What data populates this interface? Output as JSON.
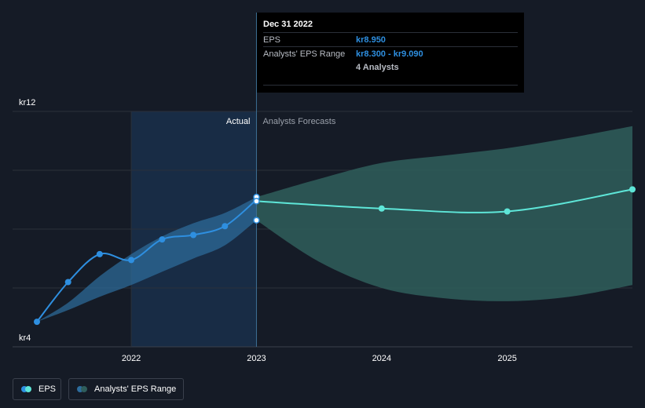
{
  "tooltip": {
    "date": "Dec 31 2022",
    "eps_label": "EPS",
    "eps_value": "kr8.950",
    "range_label": "Analysts' EPS Range",
    "range_value": "kr8.300 - kr9.090",
    "analysts": "4 Analysts"
  },
  "legend": {
    "eps": "EPS",
    "range": "Analysts' EPS Range"
  },
  "colors": {
    "background": "#151b26",
    "eps_line": "#2e8fe0",
    "forecast_line": "#5ee6d8",
    "actual_band": "#2d6d9e",
    "forecast_band": "#2f5e5c"
  },
  "chart_data": {
    "type": "line",
    "y_unit_prefix": "kr",
    "y_tick_labels": [
      "kr12",
      "kr4"
    ],
    "ylim": [
      4,
      12
    ],
    "x_tick_labels": [
      "2022",
      "2023",
      "2024",
      "2025"
    ],
    "xlim": [
      "2021-03-31",
      "2025-12-31"
    ],
    "divider_date": "2022-12-31",
    "section_labels": {
      "actual": "Actual",
      "forecast": "Analysts Forecasts"
    },
    "grid": true,
    "legend_position": "bottom-left",
    "series": [
      {
        "name": "EPS",
        "x": [
          "2021-03-31",
          "2021-06-30",
          "2021-09-30",
          "2021-12-31",
          "2022-03-31",
          "2022-06-30",
          "2022-09-30",
          "2022-12-31"
        ],
        "y": [
          4.85,
          6.2,
          7.15,
          6.95,
          7.65,
          7.8,
          8.1,
          9.0
        ]
      },
      {
        "name": "Analysts Forecasts",
        "x": [
          "2022-12-31",
          "2023-12-31",
          "2024-12-31",
          "2025-12-31"
        ],
        "y": [
          8.95,
          8.7,
          8.6,
          9.35
        ]
      },
      {
        "name": "Analysts' EPS Range",
        "x": [
          "2021-03-31",
          "2021-06-30",
          "2021-09-30",
          "2021-12-31",
          "2022-03-31",
          "2022-06-30",
          "2022-09-30",
          "2022-12-31",
          "2023-06-30",
          "2023-12-31",
          "2024-06-30",
          "2024-12-31",
          "2025-06-30",
          "2025-12-31"
        ],
        "low": [
          4.85,
          5.25,
          5.7,
          6.1,
          6.55,
          7.0,
          7.45,
          8.3,
          6.9,
          6.0,
          5.65,
          5.55,
          5.7,
          6.1
        ],
        "high": [
          4.85,
          5.5,
          6.4,
          7.15,
          7.75,
          8.2,
          8.55,
          9.09,
          9.7,
          10.25,
          10.5,
          10.75,
          11.1,
          11.5
        ]
      }
    ],
    "highlight_points": {
      "x": "2022-12-31",
      "values": [
        9.09,
        8.95,
        8.3
      ]
    }
  }
}
